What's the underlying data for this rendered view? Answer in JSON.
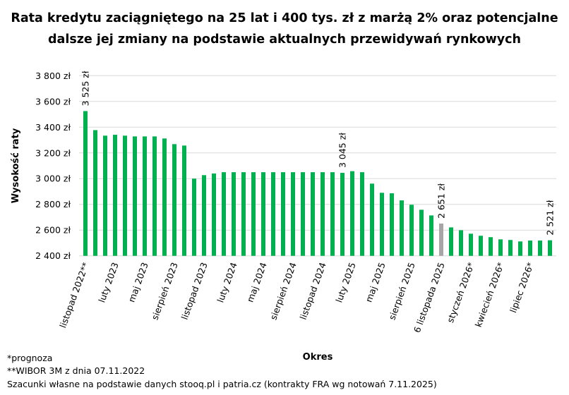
{
  "chart_data": {
    "type": "bar",
    "title_lines": [
      "Rata kredytu zaciągniętego na 25 lat i 400 tys. zł z marżą 2% oraz potencjalne",
      "dalsze jej zmiany na podstawie aktualnych przewidywań rynkowych"
    ],
    "xlabel": "Okres",
    "ylabel": "Wysokość raty",
    "ylim": [
      2400,
      3800
    ],
    "yticks": [
      2400,
      2600,
      2800,
      3000,
      3200,
      3400,
      3600,
      3800
    ],
    "ytick_labels": [
      "2 400 zł",
      "2 600 zł",
      "2 800 zł",
      "3 000 zł",
      "3 200 zł",
      "3 400 zł",
      "3 600 zł",
      "3 800 zł"
    ],
    "grid": true,
    "x_tick_labels": [
      "listopad 2022**",
      "luty 2023",
      "maj 2023",
      "sierpień 2023",
      "listopad 2023",
      "luty 2024",
      "maj 2024",
      "sierpień 2024",
      "listopad 2024",
      "luty 2025",
      "maj 2025",
      "sierpień 2025",
      "6 listopada 2025",
      "styczeń 2026*",
      "kwiecień 2026*",
      "lipiec 2026*"
    ],
    "x_tick_every": 3,
    "values": [
      3525,
      3377,
      3334,
      3341,
      3334,
      3328,
      3328,
      3328,
      3312,
      3268,
      3257,
      3000,
      3027,
      3040,
      3050,
      3050,
      3050,
      3050,
      3050,
      3050,
      3050,
      3050,
      3050,
      3050,
      3050,
      3050,
      3045,
      3058,
      3050,
      2961,
      2890,
      2886,
      2831,
      2797,
      2758,
      2714,
      2651,
      2621,
      2599,
      2572,
      2556,
      2545,
      2528,
      2523,
      2512,
      2519,
      2519,
      2521
    ],
    "highlight_index": 36,
    "data_labels": [
      {
        "index": 0,
        "text": "3 525 zł"
      },
      {
        "index": 26,
        "text": "3 045 zł"
      },
      {
        "index": 36,
        "text": "2 651 zł"
      },
      {
        "index": 47,
        "text": "2 521 zł"
      }
    ],
    "colors": {
      "bar": "#00b050",
      "highlight": "#a6a6a6",
      "grid": "#d9d9d9"
    }
  },
  "footnotes": [
    "*prognoza",
    "**WIBOR 3M z dnia 07.11.2022",
    "Szacunki własne na podstawie danych stooq.pl i patria.cz (kontrakty FRA wg notowań 7.11.2025)"
  ]
}
